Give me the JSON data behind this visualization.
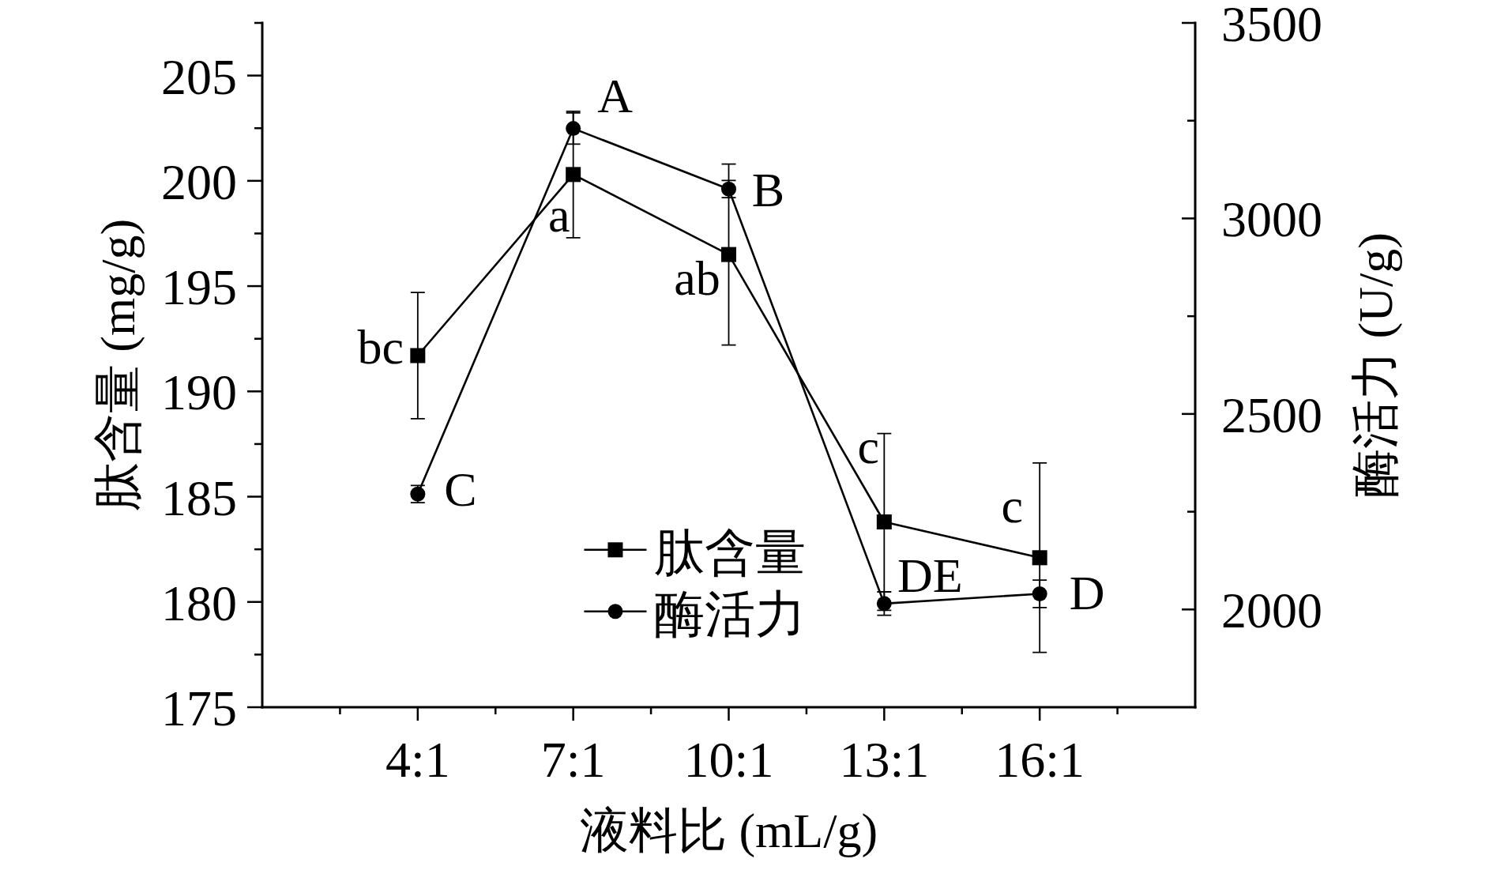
{
  "chart_data": {
    "type": "line",
    "xlabel": "液料比 (mL/g)",
    "ylabel": "肽含量 (mg/g)",
    "y2label": "酶活力 (U/g)",
    "categories": [
      "4:1",
      "7:1",
      "10:1",
      "13:1",
      "16:1"
    ],
    "series": [
      {
        "name": "肽含量",
        "color": "#000000",
        "marker": "square",
        "values": [
          191.7,
          200.3,
          196.5,
          183.8,
          182.1
        ],
        "errors": [
          3.0,
          3.0,
          4.3,
          4.2,
          4.5
        ]
      },
      {
        "name": "酶活力",
        "color": "#000000",
        "marker": "circle",
        "axis": "y2",
        "values": [
          2295,
          3230,
          3075,
          2015,
          2040
        ],
        "errors": [
          22,
          40,
          22,
          30,
          35
        ]
      }
    ],
    "ylim": [
      175,
      207.5
    ],
    "yticks": [
      175,
      {
        "value": 177.5,
        "label": null
      },
      180,
      {
        "value": 182.5,
        "label": null
      },
      185,
      {
        "value": 187.5,
        "label": null
      },
      190,
      {
        "value": 192.5,
        "label": null
      },
      195,
      {
        "value": 197.5,
        "label": null
      },
      200,
      {
        "value": 202.5,
        "label": null
      },
      205,
      {
        "value": 207.5,
        "label": null
      }
    ],
    "y2lim": [
      1750,
      3500
    ],
    "y2ticks": [
      2000,
      {
        "value": 2250,
        "label": null
      },
      2500,
      {
        "value": 2750,
        "label": null
      },
      3000,
      {
        "value": 3250,
        "label": null
      },
      3500
    ],
    "legend": "bottom",
    "annotations": [
      {
        "text": "bc",
        "x": "4:1",
        "y": 191.7
      },
      "C",
      "A",
      {
        "text": "a",
        "x": "7:1",
        "y": 200.3
      },
      "B",
      {
        "text": "ab",
        "x": "10:1",
        "y": 196.5
      },
      {
        "text": "c",
        "x": "13:1",
        "y": 183.8
      },
      "DE",
      {
        "text": "c",
        "x": "16:1",
        "y": 182.1
      },
      "D"
    ]
  }
}
